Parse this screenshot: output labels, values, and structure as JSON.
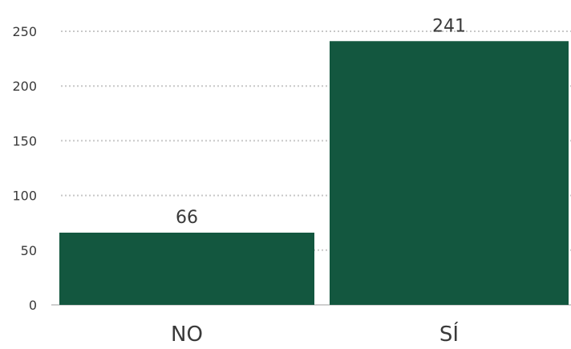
{
  "chart_data": {
    "type": "bar",
    "categories": [
      "NO",
      "SÍ"
    ],
    "values": [
      66,
      241
    ],
    "data_labels": [
      "66",
      "241"
    ],
    "y_ticks": [
      0,
      50,
      100,
      150,
      200,
      250
    ],
    "y_tick_labels": [
      "0",
      "50",
      "100",
      "150",
      "200",
      "250"
    ],
    "ylim": [
      0,
      250
    ],
    "grid": true,
    "bar_color": "#13573f",
    "gridline_color": "#c8c8c8",
    "text_color": "#3a3a3a"
  }
}
